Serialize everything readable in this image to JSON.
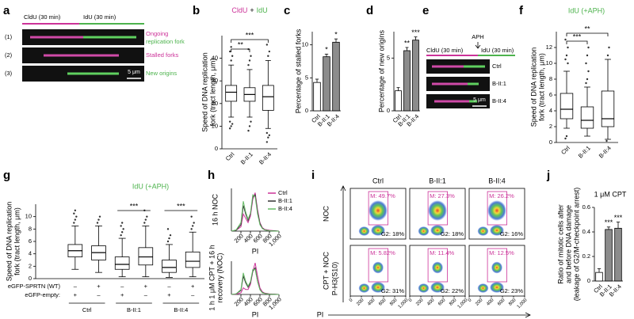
{
  "panel_a": {
    "label": "a",
    "cldu": "CldU (30 min)",
    "idu": "IdU (30 min)",
    "rows": [
      "(1)",
      "(2)",
      "(3)"
    ],
    "descriptions": [
      [
        "Ongoing",
        "replication fork"
      ],
      [
        "Stalled forks"
      ],
      [
        "New origins"
      ]
    ],
    "scale": "5 μm"
  },
  "panel_e": {
    "label": "e",
    "aph": "APH",
    "cldu": "CldU (30 min)",
    "idu": "IdU (30 min)",
    "rows": [
      "Ctrl",
      "B-II:1",
      "B-II:4"
    ],
    "scale": "5 μm"
  },
  "chart_data": [
    {
      "type": "box",
      "panel": "b",
      "title_parts": [
        {
          "text": "CldU",
          "color": "#cc3399"
        },
        {
          "text": "+",
          "color": "#000000"
        },
        {
          "text": "IdU",
          "color": "#4db34d"
        }
      ],
      "ylabel": [
        "Speed of DNA replication",
        "fork (tract length, μm)"
      ],
      "categories": [
        "Ctrl",
        "B-II:1",
        "B-II:4"
      ],
      "color": "#ffffff",
      "boxes": [
        {
          "whislo": 14,
          "q1": 21,
          "med": 25,
          "q3": 28,
          "whishi": 37,
          "fliers": [
            9,
            10,
            11,
            12,
            39,
            41,
            43,
            45
          ]
        },
        {
          "whislo": 14,
          "q1": 21,
          "med": 24,
          "q3": 27,
          "whishi": 35,
          "fliers": [
            8,
            10,
            12,
            37,
            39,
            41,
            44
          ]
        },
        {
          "whislo": 9,
          "q1": 17,
          "med": 23,
          "q3": 28,
          "whishi": 39,
          "fliers": [
            3,
            5,
            6,
            7,
            41,
            43,
            46
          ]
        }
      ],
      "significance": [
        "**",
        "***"
      ],
      "ylim": [
        0,
        50
      ],
      "yticks": [
        0,
        10,
        20,
        30,
        40
      ]
    },
    {
      "type": "bar",
      "panel": "c",
      "ylabel": [
        "Percentage of stalled forks"
      ],
      "categories": [
        "Ctrl",
        "B-II:1",
        "B-II:4"
      ],
      "values": [
        4.3,
        8.2,
        10.4
      ],
      "errors": [
        0.5,
        0.4,
        0.5
      ],
      "colors": [
        "#ffffff",
        "#8c8c8c",
        "#8c8c8c"
      ],
      "significance": [
        null,
        "*",
        "*"
      ],
      "ylim": [
        0,
        12
      ],
      "yticks": [
        0,
        5,
        10
      ]
    },
    {
      "type": "bar",
      "panel": "d",
      "ylabel": [
        "Percentage of new origins"
      ],
      "categories": [
        "Ctrl",
        "B-II:1",
        "B-II:4"
      ],
      "values": [
        1.9,
        5.7,
        6.7
      ],
      "errors": [
        0.3,
        0.3,
        0.3
      ],
      "colors": [
        "#ffffff",
        "#8c8c8c",
        "#8c8c8c"
      ],
      "significance": [
        null,
        "**",
        "***"
      ],
      "ylim": [
        0,
        7.5
      ],
      "yticks": [
        0,
        5
      ]
    },
    {
      "type": "box",
      "panel": "f",
      "title": "IdU (+APH)",
      "title_color": "#4db34d",
      "ylabel": [
        "Speed of DNA replication",
        "fork (tract length, μm)"
      ],
      "categories": [
        "Ctrl",
        "B-II:1",
        "B-II:4"
      ],
      "color": "#ffffff",
      "boxes": [
        {
          "whislo": 1.8,
          "q1": 3,
          "med": 4.2,
          "q3": 6.2,
          "whishi": 9,
          "fliers": [
            0.5,
            0.8,
            10,
            10.5,
            11,
            12,
            13
          ]
        },
        {
          "whislo": 0.8,
          "q1": 1.8,
          "med": 2.8,
          "q3": 4.5,
          "whishi": 7,
          "fliers": [
            7.5,
            8,
            9,
            10,
            11,
            12
          ]
        },
        {
          "whislo": 0.4,
          "q1": 2,
          "med": 3,
          "q3": 6.5,
          "whishi": 10.5,
          "fliers": [
            0.2,
            11,
            12
          ]
        }
      ],
      "significance": [
        "***",
        "**"
      ],
      "ylim": [
        0,
        14
      ],
      "yticks": [
        0,
        2,
        4,
        6,
        8,
        10,
        12
      ]
    },
    {
      "type": "box",
      "panel": "g",
      "title": "IdU (+APH)",
      "title_color": "#4db34d",
      "ylabel": [
        "Speed of DNA replication",
        "fork (tract length, μm)"
      ],
      "categories": [
        null,
        null,
        null,
        null,
        null,
        null
      ],
      "color": "#ffffff",
      "x_rows": [
        {
          "label": "eGFP-SPRTN (WT)",
          "values": [
            "–",
            "+",
            "–",
            "+",
            "–",
            "+"
          ]
        },
        {
          "label": "eGFP-empty:",
          "values": [
            "+",
            "–",
            "+",
            "–",
            "+",
            "–"
          ]
        }
      ],
      "groups": [
        "Ctrl",
        "B-II:1",
        "B-II:4"
      ],
      "boxes": [
        {
          "whislo": 1.5,
          "q1": 3.5,
          "med": 4.5,
          "q3": 5.5,
          "whishi": 8.5,
          "fliers": [
            9,
            9.5,
            10,
            10.5,
            11
          ]
        },
        {
          "whislo": 1,
          "q1": 3,
          "med": 4.2,
          "q3": 5.3,
          "whishi": 8.5,
          "fliers": [
            9,
            9.5,
            10
          ]
        },
        {
          "whislo": 0.3,
          "q1": 1.5,
          "med": 2.3,
          "q3": 3.5,
          "whishi": 6.5,
          "fliers": [
            7,
            7.5,
            8,
            8.5,
            9
          ]
        },
        {
          "whislo": 0.3,
          "q1": 2.2,
          "med": 3.5,
          "q3": 5,
          "whishi": 8.5,
          "fliers": [
            9,
            9.5,
            10,
            11
          ]
        },
        {
          "whislo": 0.2,
          "q1": 1,
          "med": 1.8,
          "q3": 3,
          "whishi": 5.5,
          "fliers": [
            6,
            6.5,
            7,
            8
          ]
        },
        {
          "whislo": 0.3,
          "q1": 1.8,
          "med": 2.8,
          "q3": 4.3,
          "whishi": 7.5,
          "fliers": [
            8,
            8.5,
            9,
            10
          ]
        }
      ],
      "significance": [
        "***",
        "***"
      ],
      "ylim": [
        0,
        12
      ],
      "yticks": [
        0,
        2,
        4,
        6,
        8,
        10
      ]
    },
    {
      "type": "line",
      "panel": "h",
      "ylabel": [
        "16 h NOC"
      ],
      "xlabel": "PI",
      "x": [
        0,
        100,
        200,
        250,
        300,
        350,
        400,
        450,
        500,
        550,
        600,
        650,
        700,
        800,
        900,
        1000
      ],
      "series": [
        {
          "name": "Ctrl",
          "color": "#cc3399",
          "values": [
            0,
            2,
            10,
            40,
            30,
            20,
            35,
            75,
            90,
            50,
            20,
            8,
            4,
            2,
            1,
            0
          ]
        },
        {
          "name": "B-II:1",
          "color": "#333333",
          "values": [
            0,
            2,
            15,
            60,
            40,
            25,
            40,
            80,
            85,
            45,
            18,
            7,
            3,
            1,
            1,
            0
          ]
        },
        {
          "name": "B-II:4",
          "color": "#66bb66",
          "values": [
            0,
            3,
            20,
            70,
            45,
            28,
            42,
            85,
            80,
            40,
            15,
            6,
            3,
            1,
            0,
            0
          ]
        }
      ],
      "xlim": [
        0,
        1000
      ],
      "xticks": [
        200,
        400,
        600,
        800,
        {
          "value": 1000,
          "label": "1,000"
        }
      ],
      "ylim": [
        0,
        100
      ],
      "legend": "upper right"
    },
    {
      "type": "line",
      "ylabel": [
        "1 h 1 μM CPT + 16 h",
        "recovery (NOC)"
      ],
      "xlabel": "PI",
      "x": [
        0,
        100,
        200,
        250,
        300,
        350,
        400,
        450,
        500,
        550,
        600,
        650,
        700,
        800,
        900,
        1000
      ],
      "series": [
        {
          "name": "Ctrl",
          "color": "#cc3399",
          "values": [
            0,
            1,
            5,
            20,
            15,
            15,
            30,
            70,
            95,
            55,
            20,
            8,
            4,
            2,
            1,
            0
          ]
        },
        {
          "name": "B-II:1",
          "color": "#333333",
          "values": [
            0,
            2,
            12,
            55,
            35,
            22,
            35,
            70,
            80,
            40,
            15,
            6,
            3,
            1,
            1,
            0
          ]
        },
        {
          "name": "B-II:4",
          "color": "#66bb66",
          "values": [
            0,
            2,
            15,
            65,
            40,
            25,
            38,
            75,
            75,
            38,
            14,
            5,
            3,
            1,
            0,
            0
          ]
        }
      ],
      "xlim": [
        0,
        1000
      ],
      "xticks": [
        200,
        400,
        600,
        800,
        {
          "value": 1000,
          "label": "1,000"
        }
      ],
      "ylim": [
        0,
        100
      ]
    },
    {
      "type": "bar",
      "panel": "j",
      "title": "1 μM CPT",
      "ylabel": [
        "Ratio of mitotic cells after",
        "and before DNA damage",
        "(leakage of G2/M-checkpoint arrest)"
      ],
      "categories": [
        "Ctrl",
        "B-II:1",
        "B-II:4"
      ],
      "values": [
        0.07,
        0.42,
        0.43
      ],
      "errors": [
        0.03,
        0.02,
        0.05
      ],
      "colors": [
        "#ffffff",
        "#8c8c8c",
        "#8c8c8c"
      ],
      "significance": [
        null,
        "***",
        "***"
      ],
      "ylim": [
        0,
        0.6
      ],
      "yticks": [
        0,
        0.2,
        0.4,
        0.6
      ]
    },
    {
      "type": "flow",
      "panel": "i",
      "columns": [
        "Ctrl",
        "B-II:1",
        "B-II:4"
      ],
      "rows": [
        "NOC",
        "CPT + NOC"
      ],
      "xlabel": "PI",
      "ylabel": "P-H3(S10)",
      "xlim": [
        0,
        1000
      ],
      "xticks": [
        0,
        200,
        400,
        600,
        800,
        {
          "value": 1000,
          "label": "1,000"
        }
      ],
      "cells": [
        {
          "m": "M: 49.7%",
          "g2": "G2: 18%"
        },
        {
          "m": "M: 27.3%",
          "g2": "G2: 18%"
        },
        {
          "m": "M: 26.2%",
          "g2": "G2: 16%"
        },
        {
          "m": "M: 5.82%",
          "g2": "G2: 31%"
        },
        {
          "m": "M: 11.4%",
          "g2": "G2: 22%"
        },
        {
          "m": "M: 12.5%",
          "g2": "G2: 23%"
        }
      ]
    }
  ]
}
